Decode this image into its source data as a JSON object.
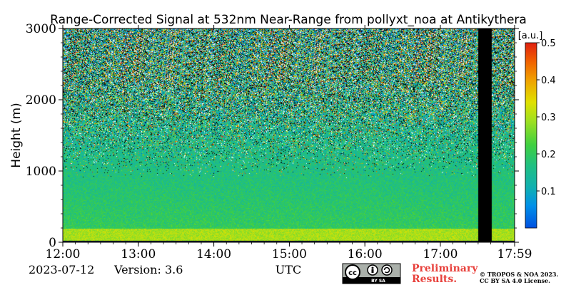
{
  "chart_data": {
    "type": "heatmap",
    "title": "Range-Corrected Signal at 532nm Near-Range from pollyxt_noa at Antikythera",
    "xlabel": "UTC",
    "ylabel": "Height (m)",
    "x_ticks": [
      "12:00",
      "13:00",
      "14:00",
      "15:00",
      "16:00",
      "17:00",
      "17:59"
    ],
    "x_tick_hours": [
      12.0,
      13.0,
      14.0,
      15.0,
      16.0,
      17.0,
      17.983
    ],
    "xlim_hours": [
      12.0,
      17.983
    ],
    "y_ticks": [
      "0",
      "1000",
      "2000",
      "3000"
    ],
    "y_tick_values": [
      0,
      1000,
      2000,
      3000
    ],
    "ylim": [
      0,
      3000
    ],
    "data_gap_hours": [
      17.5,
      17.68
    ],
    "colorbar": {
      "unit": "[a.u.]",
      "ticks": [
        "0.1",
        "0.2",
        "0.3",
        "0.4",
        "0.5"
      ],
      "tick_values": [
        0.1,
        0.2,
        0.3,
        0.4,
        0.5
      ],
      "range": [
        0.0,
        0.5
      ],
      "colormap": "jet"
    },
    "summary": "Signal ~0.2 (green) below 1000 m, noisy mixed values above 1500 m, strong values near 100 m, data gap around 17:30-17:40 UTC"
  },
  "footer": {
    "date": "2023-07-12",
    "version": "Version: 3.6",
    "preliminary_line1": "Preliminary",
    "preliminary_line2": "Results.",
    "copyright_line1": "© TROPOS & NOA 2023.",
    "copyright_line2": "CC BY SA 4.0 License.",
    "license_badge_text": "BY   SA"
  },
  "colors": {
    "preliminary": "#e8413c",
    "gap": "#000000"
  }
}
